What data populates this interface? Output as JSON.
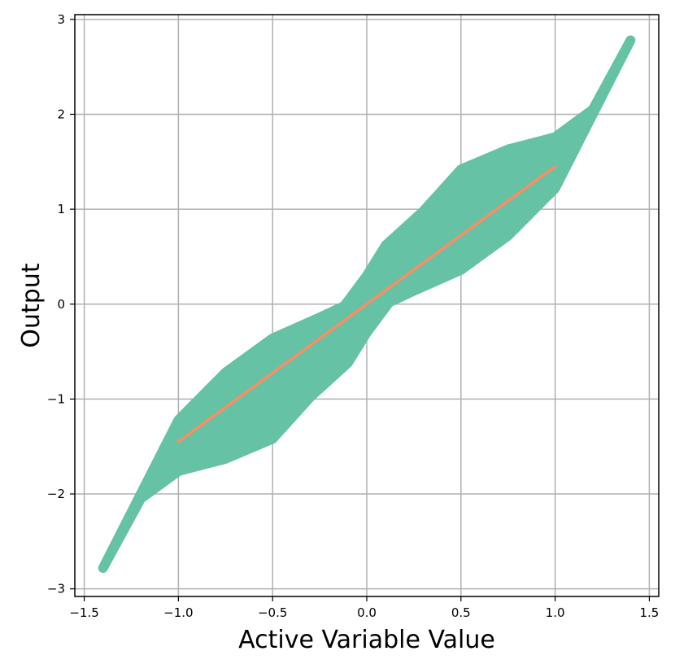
{
  "chart_data": {
    "type": "scatter",
    "title": "",
    "xlabel": "Active Variable Value",
    "ylabel": "Output",
    "xlim": [
      -1.55,
      1.55
    ],
    "ylim": [
      -3.08,
      3.05
    ],
    "xticks": [
      -1.5,
      -1.0,
      -0.5,
      0.0,
      0.5,
      1.0,
      1.5
    ],
    "xtick_labels": [
      "−1.5",
      "−1.0",
      "−0.5",
      "0.0",
      "0.5",
      "1.0",
      "1.5"
    ],
    "yticks": [
      -3,
      -2,
      -1,
      0,
      1,
      2,
      3
    ],
    "ytick_labels": [
      "−3",
      "−2",
      "−1",
      "0",
      "1",
      "2",
      "3"
    ],
    "grid": true,
    "colors": {
      "scatter": "#66c2a5",
      "fit_line": "#fc8d62",
      "grid": "#b0b0b0",
      "axes": "#000000"
    },
    "series": [
      {
        "kind": "scatter_band",
        "upper": [
          [
            -1.4,
            -2.78
          ],
          [
            -1.2,
            -2.0
          ],
          [
            -1.0,
            -1.22
          ],
          [
            -0.75,
            -0.72
          ],
          [
            -0.5,
            -0.36
          ],
          [
            -0.25,
            -0.14
          ],
          [
            -0.12,
            -0.02
          ],
          [
            0.0,
            0.3
          ],
          [
            0.1,
            0.62
          ],
          [
            0.3,
            0.98
          ],
          [
            0.5,
            1.42
          ],
          [
            0.75,
            1.63
          ],
          [
            1.0,
            1.76
          ],
          [
            1.2,
            2.05
          ],
          [
            1.4,
            2.78
          ]
        ],
        "lower": [
          [
            -1.4,
            -2.78
          ],
          [
            -1.2,
            -2.05
          ],
          [
            -1.0,
            -1.76
          ],
          [
            -0.75,
            -1.63
          ],
          [
            -0.5,
            -1.42
          ],
          [
            -0.3,
            -0.98
          ],
          [
            -0.1,
            -0.62
          ],
          [
            0.0,
            -0.3
          ],
          [
            0.12,
            0.02
          ],
          [
            0.25,
            0.14
          ],
          [
            0.5,
            0.36
          ],
          [
            0.75,
            0.72
          ],
          [
            1.0,
            1.22
          ],
          [
            1.2,
            2.0
          ],
          [
            1.4,
            2.78
          ]
        ]
      },
      {
        "kind": "line",
        "x": [
          -1.0,
          1.0
        ],
        "y": [
          -1.45,
          1.45
        ]
      }
    ]
  }
}
